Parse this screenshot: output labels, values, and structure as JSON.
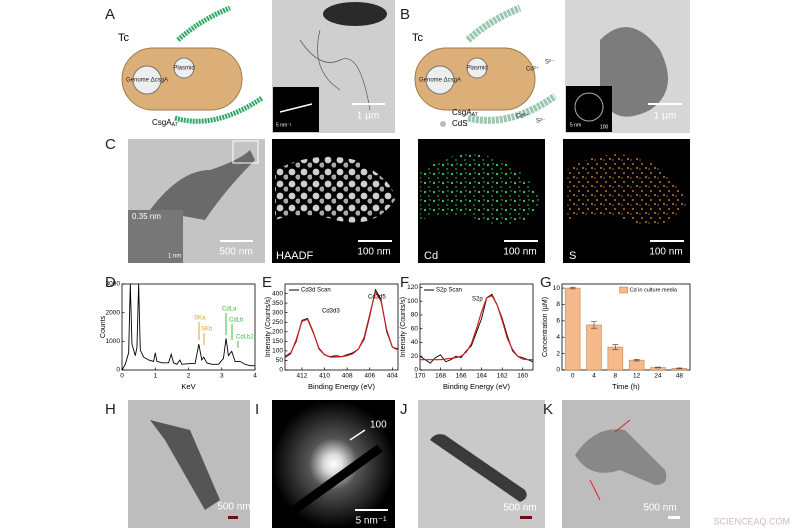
{
  "panel_labels": [
    "A",
    "B",
    "C",
    "D",
    "E",
    "F",
    "G",
    "H",
    "I",
    "J",
    "K"
  ],
  "schematic_a": {
    "tc": "Tc",
    "genome": "Genome ΔcsgA",
    "plasmid": "Plasmid",
    "legend": "CsgA",
    "legend_sub": "A7"
  },
  "schematic_b": {
    "tc": "Tc",
    "genome": "Genome ΔcsgA",
    "plasmid": "Plasmid",
    "legend": "CsgA",
    "legend_sub": "A7",
    "cds": "CdS",
    "ions": [
      "Cd²⁺",
      "S²⁻",
      "Cd²⁺",
      "S²⁻"
    ]
  },
  "images": {
    "a_scale": "1 µm",
    "a_inset_scale": "5 nm⁻¹",
    "b_scale": "1 µm",
    "b_inset_scale": "5 nm",
    "b_inset_ring": "100",
    "c_scale": "500 nm",
    "c_lattice": "0.35 nm",
    "c_inset_scale": "1 nm",
    "haadf": "HAADF",
    "haadf_scale": "100 nm",
    "cd": "Cd",
    "cd_scale": "100 nm",
    "s": "S",
    "s_scale": "100 nm",
    "h_scale": "500 nm",
    "i_ring": "100",
    "i_scale": "5 nm⁻¹",
    "j_scale": "500 nm",
    "k_scale": "500 nm"
  },
  "watermark": "SCIENCEAQ.COM",
  "chart_data": [
    {
      "type": "line",
      "x_label": "KeV",
      "y_label": "Counts",
      "xlim": [
        0,
        4
      ],
      "ylim": [
        0,
        3000
      ],
      "xticks": [
        0,
        1,
        2,
        3,
        4
      ],
      "yticks": [
        0,
        1000,
        2000,
        3000
      ],
      "series": [
        {
          "color": "#000000",
          "x": [
            0.0,
            0.1,
            0.2,
            0.25,
            0.3,
            0.4,
            0.45,
            0.5,
            0.55,
            0.65,
            0.8,
            0.95,
            1.0,
            1.05,
            1.2,
            1.4,
            1.48,
            1.55,
            1.65,
            1.74,
            1.8,
            2.0,
            2.2,
            2.31,
            2.4,
            2.46,
            2.55,
            2.7,
            2.9,
            3.05,
            3.13,
            3.2,
            3.3,
            3.4,
            3.55,
            3.7,
            3.85,
            4.0
          ],
          "values": [
            0,
            200,
            600,
            3000,
            900,
            500,
            800,
            3000,
            700,
            450,
            350,
            300,
            600,
            300,
            250,
            250,
            550,
            250,
            200,
            350,
            200,
            220,
            230,
            900,
            350,
            450,
            250,
            200,
            200,
            400,
            1100,
            500,
            650,
            300,
            300,
            200,
            150,
            150
          ]
        }
      ],
      "annotations": [
        {
          "text": "SKa",
          "color": "#e0a030"
        },
        {
          "text": "SKb",
          "color": "#e0a030"
        },
        {
          "text": "CdLa",
          "color": "#39c23a"
        },
        {
          "text": "CdLb",
          "color": "#39c23a"
        },
        {
          "text": "CdLb2",
          "color": "#39c23a"
        }
      ]
    },
    {
      "type": "line",
      "x_label": "Binding Energy (eV)",
      "y_label": "Intensity (Counts/s)",
      "xlim": [
        413.5,
        403.5
      ],
      "ylim": [
        0,
        450
      ],
      "xticks": [
        412,
        410,
        408,
        406,
        404
      ],
      "yticks": [
        0,
        50,
        100,
        150,
        200,
        250,
        300,
        350,
        400
      ],
      "series": [
        {
          "name": "Cd3d Scan",
          "color": "#000000",
          "x": [
            413.5,
            413,
            412.5,
            412,
            411.5,
            411,
            410.5,
            410,
            409.5,
            409,
            408.5,
            408,
            407.5,
            407,
            406.5,
            406,
            405.5,
            405,
            404.5,
            404,
            403.5
          ],
          "values": [
            70,
            90,
            150,
            260,
            270,
            200,
            110,
            80,
            70,
            75,
            70,
            80,
            90,
            110,
            160,
            280,
            420,
            370,
            200,
            120,
            110
          ]
        },
        {
          "color": "#cc1f1a",
          "x": [
            413.5,
            413,
            412.5,
            412,
            411.5,
            411,
            410.5,
            410,
            409.5,
            409,
            408.5,
            408,
            407.5,
            407,
            406.5,
            406,
            405.5,
            405,
            404.5,
            404,
            403.5
          ],
          "values": [
            65,
            85,
            160,
            255,
            265,
            195,
            115,
            80,
            68,
            68,
            70,
            75,
            85,
            110,
            170,
            290,
            410,
            360,
            210,
            120,
            105
          ]
        }
      ],
      "annotations": [
        {
          "text": "Cd3d3",
          "color": "#000000"
        },
        {
          "text": "Cd3d5",
          "color": "#000000"
        }
      ]
    },
    {
      "type": "line",
      "x_label": "Binding Energy (eV)",
      "y_label": "Intensity (Counts/s)",
      "xlim": [
        170,
        159
      ],
      "ylim": [
        0,
        125
      ],
      "xticks": [
        170,
        168,
        166,
        164,
        162,
        160
      ],
      "yticks": [
        0,
        20,
        40,
        60,
        80,
        100,
        120
      ],
      "series": [
        {
          "name": "S2p Scan",
          "color": "#000000",
          "x": [
            170,
            169.5,
            169,
            168.5,
            168,
            167.5,
            167,
            166.5,
            166,
            165.5,
            165,
            164.5,
            164,
            163.5,
            163,
            162.5,
            162,
            161.5,
            161,
            160.5,
            160,
            159.5,
            159
          ],
          "values": [
            20,
            15,
            10,
            18,
            22,
            12,
            15,
            20,
            18,
            28,
            35,
            55,
            75,
            105,
            110,
            95,
            75,
            50,
            28,
            20,
            18,
            15,
            12
          ]
        },
        {
          "color": "#cc1f1a",
          "x": [
            170,
            169.5,
            169,
            168.5,
            168,
            167.5,
            167,
            166.5,
            166,
            165.5,
            165,
            164.5,
            164,
            163.5,
            163,
            162.5,
            162,
            161.5,
            161,
            160.5,
            160,
            159.5,
            159
          ],
          "values": [
            15,
            15,
            15,
            15,
            15,
            16,
            17,
            18,
            20,
            26,
            38,
            60,
            85,
            105,
            108,
            95,
            72,
            46,
            30,
            20,
            16,
            15,
            15
          ]
        }
      ],
      "annotations": [
        {
          "text": "S2p",
          "color": "#000000"
        }
      ]
    },
    {
      "type": "bar",
      "x_label": "Time (h)",
      "y_label": "Concentration (µM)",
      "categories": [
        "0",
        "4",
        "8",
        "12",
        "24",
        "48"
      ],
      "ylim": [
        0,
        10.5
      ],
      "yticks": [
        0,
        2,
        4,
        6,
        8,
        10
      ],
      "series": [
        {
          "name": "Cd in culture media",
          "color": "#f6b98a",
          "edgecolor": "#c8844f",
          "values": [
            10,
            5.5,
            2.8,
            1.2,
            0.3,
            0.2
          ],
          "errors": [
            0.1,
            0.4,
            0.3,
            0.1,
            0.05,
            0.05
          ]
        }
      ]
    }
  ]
}
